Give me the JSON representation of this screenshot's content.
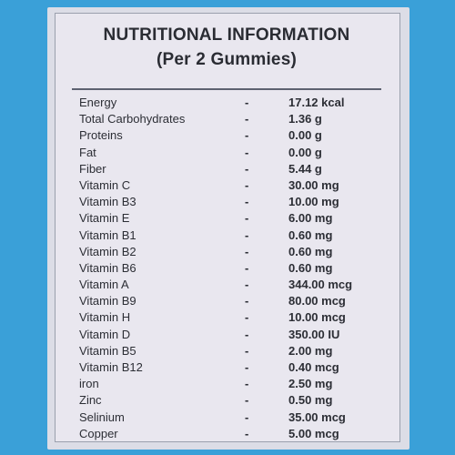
{
  "title": "NUTRITIONAL INFORMATION",
  "subtitle": "(Per 2 Gummies)",
  "separator": "-",
  "rows": [
    {
      "name": "Energy",
      "value": "17.12 kcal"
    },
    {
      "name": "Total Carbohydrates",
      "value": "1.36 g"
    },
    {
      "name": "Proteins",
      "value": "0.00 g"
    },
    {
      "name": "Fat",
      "value": "0.00 g"
    },
    {
      "name": "Fiber",
      "value": "5.44 g"
    },
    {
      "name": "Vitamin C",
      "value": "30.00 mg"
    },
    {
      "name": "Vitamin B3",
      "value": "10.00 mg"
    },
    {
      "name": "Vitamin E",
      "value": "6.00 mg"
    },
    {
      "name": "Vitamin B1",
      "value": "0.60 mg"
    },
    {
      "name": "Vitamin B2",
      "value": "0.60 mg"
    },
    {
      "name": "Vitamin B6",
      "value": "0.60 mg"
    },
    {
      "name": "Vitamin A",
      "value": "344.00 mcg"
    },
    {
      "name": "Vitamin B9",
      "value": "80.00 mcg"
    },
    {
      "name": "Vitamin H",
      "value": "10.00 mcg"
    },
    {
      "name": "Vitamin D",
      "value": "350.00 IU"
    },
    {
      "name": "Vitamin B5",
      "value": "2.00 mg"
    },
    {
      "name": "Vitamin B12",
      "value": "0.40 mcg"
    },
    {
      "name": "iron",
      "value": "2.50 mg"
    },
    {
      "name": "Zinc",
      "value": "0.50 mg"
    },
    {
      "name": "Selinium",
      "value": "35.00 mcg"
    },
    {
      "name": "Copper",
      "value": "5.00 mcg"
    }
  ]
}
